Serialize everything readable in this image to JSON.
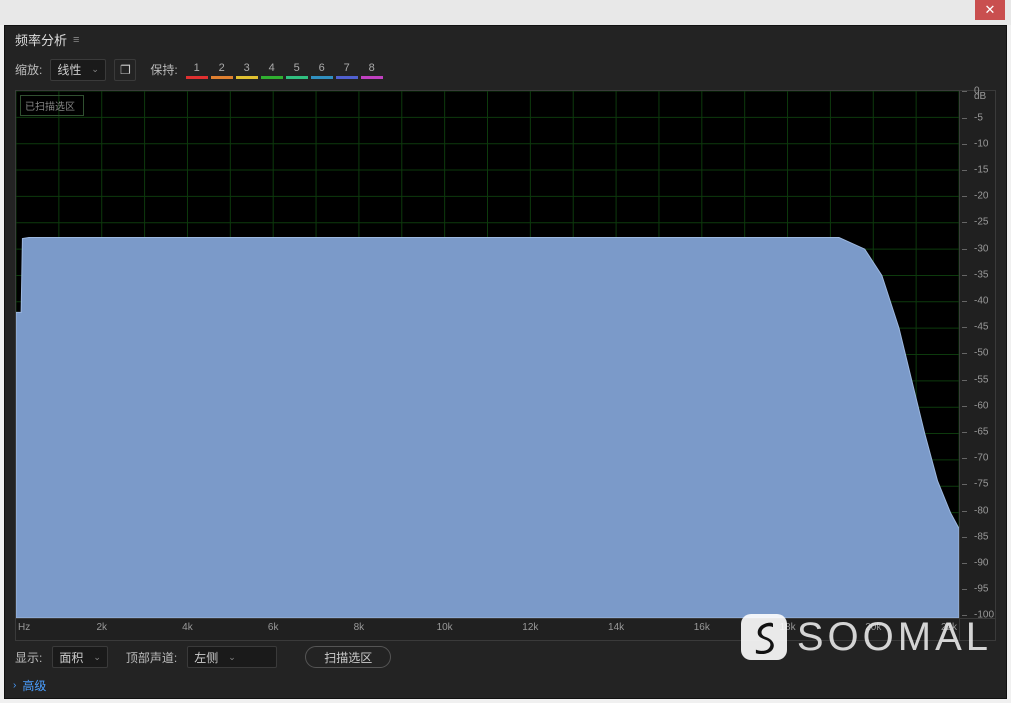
{
  "window": {
    "close_glyph": "✕"
  },
  "panel": {
    "title": "频率分析",
    "menu_glyph": "≡"
  },
  "toolbar": {
    "zoom_label": "缩放:",
    "zoom_value": "线性",
    "new_window_glyph": "❐",
    "hold_label": "保持:",
    "hold_buttons": [
      {
        "n": "1",
        "color": "#e03030"
      },
      {
        "n": "2",
        "color": "#e08030"
      },
      {
        "n": "3",
        "color": "#e0c030"
      },
      {
        "n": "4",
        "color": "#30b030"
      },
      {
        "n": "5",
        "color": "#30c080"
      },
      {
        "n": "6",
        "color": "#3090c0"
      },
      {
        "n": "7",
        "color": "#5060d0"
      },
      {
        "n": "8",
        "color": "#c040c0"
      }
    ]
  },
  "chart": {
    "type": "area",
    "legend_label": "已扫描选区",
    "y_unit": "dB",
    "y_min": -100,
    "y_max": 0,
    "y_step": 5,
    "x_unit_label": "Hz",
    "x_min": 0,
    "x_max": 22000,
    "x_ticks": [
      {
        "v": 0,
        "label": "Hz"
      },
      {
        "v": 2000,
        "label": "2k"
      },
      {
        "v": 4000,
        "label": "4k"
      },
      {
        "v": 6000,
        "label": "6k"
      },
      {
        "v": 8000,
        "label": "8k"
      },
      {
        "v": 10000,
        "label": "10k"
      },
      {
        "v": 12000,
        "label": "12k"
      },
      {
        "v": 14000,
        "label": "14k"
      },
      {
        "v": 16000,
        "label": "16k"
      },
      {
        "v": 18000,
        "label": "18k"
      },
      {
        "v": 20000,
        "label": "20k"
      },
      {
        "v": 22000,
        "label": "22k"
      }
    ],
    "grid_color": "#0d3a0d",
    "grid_minor_color": "#072507",
    "background_color": "#000000",
    "area_fill": "#7b9ac9",
    "area_stroke": "#9db8e0",
    "series": [
      {
        "x": 0,
        "y": -42
      },
      {
        "x": 120,
        "y": -42
      },
      {
        "x": 150,
        "y": -28
      },
      {
        "x": 300,
        "y": -27.8
      },
      {
        "x": 19200,
        "y": -27.8
      },
      {
        "x": 19800,
        "y": -30
      },
      {
        "x": 20200,
        "y": -35
      },
      {
        "x": 20600,
        "y": -45
      },
      {
        "x": 20900,
        "y": -55
      },
      {
        "x": 21200,
        "y": -65
      },
      {
        "x": 21500,
        "y": -74
      },
      {
        "x": 21800,
        "y": -80
      },
      {
        "x": 22000,
        "y": -83
      }
    ]
  },
  "footer": {
    "display_label": "显示:",
    "display_value": "面积",
    "channel_label": "顶部声道:",
    "channel_value": "左侧",
    "scan_button": "扫描选区",
    "advanced_label": "高级"
  },
  "watermark": {
    "text": "SOOMAL"
  }
}
